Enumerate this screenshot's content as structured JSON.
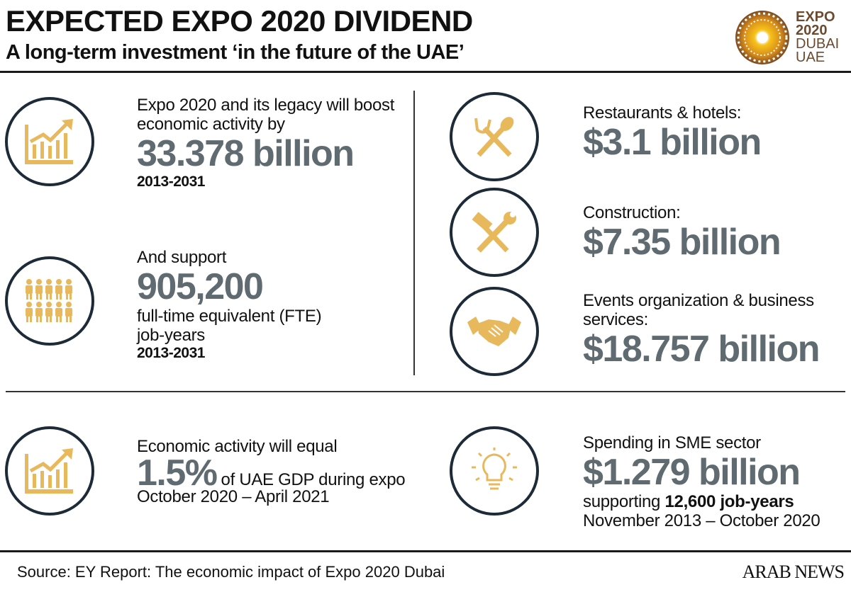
{
  "header": {
    "title": "EXPECTED EXPO 2020 DIVIDEND",
    "subtitle": "A long-term investment ‘in the future of the UAE’",
    "logo_text": [
      "EXPO",
      "2020",
      "DUBAI",
      "UAE"
    ]
  },
  "colors": {
    "accent": "#e8b95c",
    "circle": "#1d2a38",
    "number": "#5f6b70"
  },
  "left": [
    {
      "icon": "growth-chart-icon",
      "text": "Expo 2020 and its legacy will boost economic activity by",
      "value": "33.378 billion",
      "period": "2013-2031"
    },
    {
      "icon": "people-icon",
      "text": "And support",
      "value": "905,200",
      "text2": "full-time equivalent (FTE) job-years",
      "period": "2013-2031"
    }
  ],
  "right": [
    {
      "icon": "fork-spoon-icon",
      "label": "Restaurants & hotels:",
      "value": "$3.1 billion"
    },
    {
      "icon": "tools-icon",
      "label": "Construction:",
      "value": "$7.35 billion"
    },
    {
      "icon": "handshake-icon",
      "label": "Events organization & business services:",
      "value": "$18.757 billion"
    }
  ],
  "bottom_left": {
    "icon": "growth-chart-icon",
    "text": "Economic activity will equal",
    "value": "1.5%",
    "value_suffix": "of UAE GDP during expo",
    "period": "October 2020 – April 2021"
  },
  "bottom_right": {
    "icon": "lightbulb-icon",
    "text": "Spending in SME sector",
    "value": "$1.279 billion",
    "support_prefix": "supporting",
    "support_value": "12,600 job-years",
    "period": "November 2013 – October 2020"
  },
  "footer": {
    "source": "Source: EY Report: The economic impact of Expo 2020 Dubai",
    "brand": "ARAB NEWS"
  }
}
